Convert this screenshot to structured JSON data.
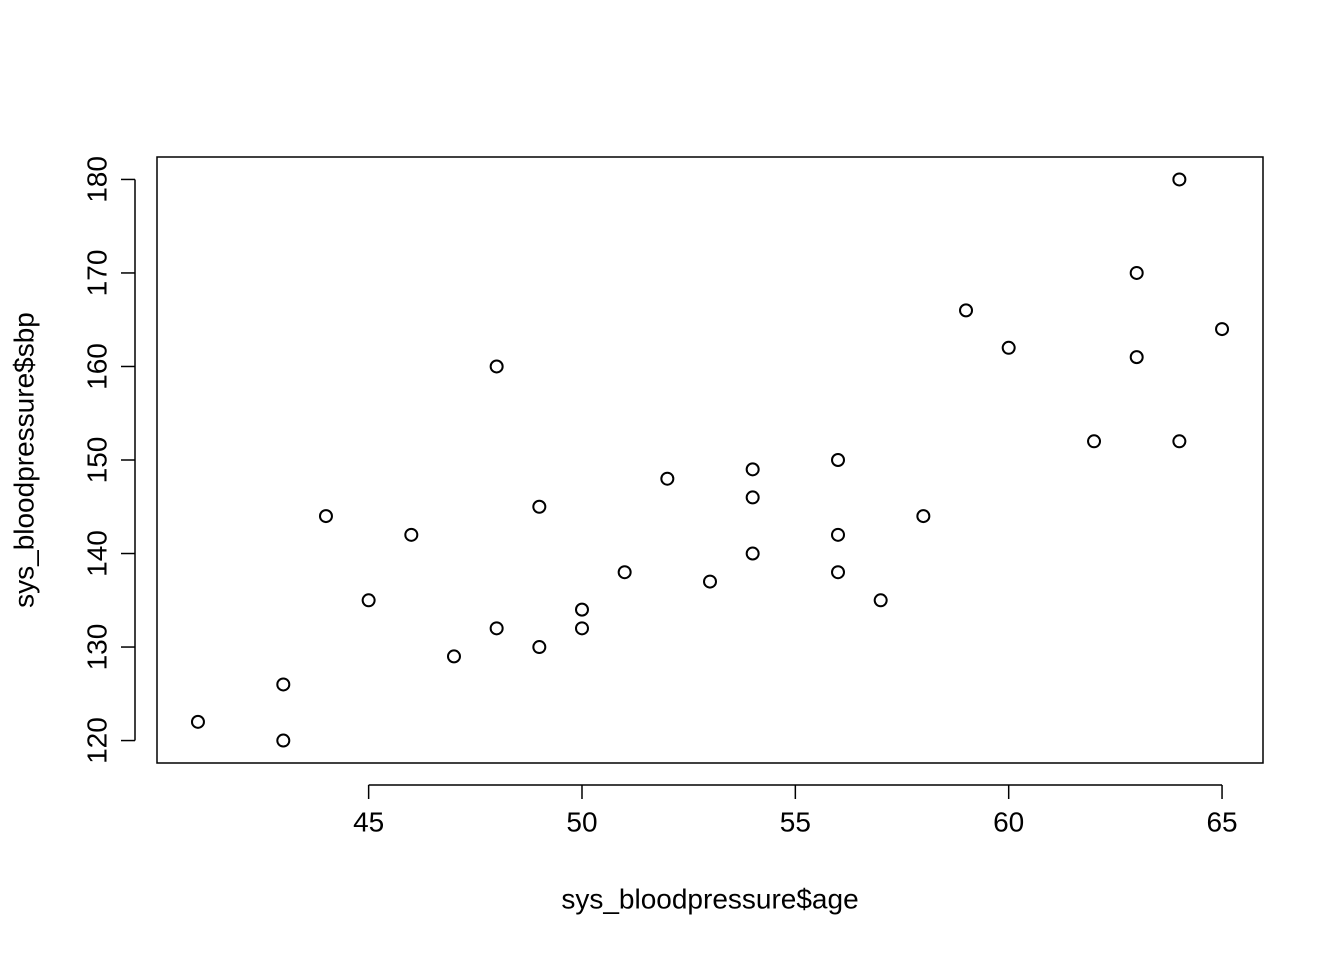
{
  "chart_data": {
    "type": "scatter",
    "x_label": "sys_bloodpressure$age",
    "y_label": "sys_bloodpressure$sbp",
    "x": [
      41,
      43,
      43,
      44,
      45,
      46,
      47,
      48,
      48,
      49,
      49,
      50,
      50,
      51,
      52,
      53,
      54,
      54,
      54,
      56,
      56,
      56,
      57,
      58,
      59,
      60,
      62,
      63,
      63,
      64,
      64,
      65
    ],
    "y": [
      122,
      126,
      120,
      144,
      135,
      142,
      129,
      160,
      132,
      145,
      130,
      134,
      132,
      138,
      148,
      137,
      149,
      146,
      140,
      150,
      142,
      138,
      135,
      144,
      166,
      162,
      152,
      170,
      161,
      180,
      152,
      164
    ],
    "color": "#000000",
    "xlim": [
      40.04,
      65.96
    ],
    "xticks": [
      45,
      50,
      55,
      60,
      65
    ],
    "ylim": [
      117.6,
      182.4
    ],
    "yticks": [
      120,
      130,
      140,
      150,
      160,
      170,
      180
    ],
    "grid": false
  }
}
